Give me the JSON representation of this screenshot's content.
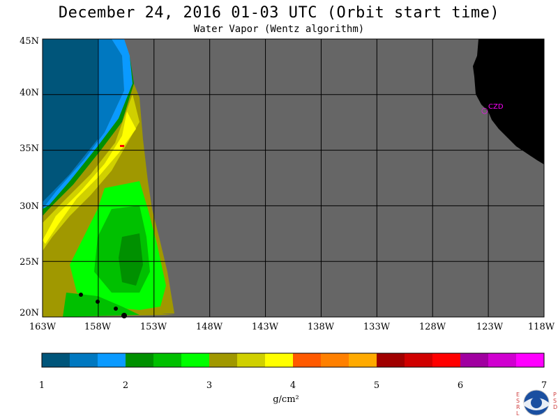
{
  "header": {
    "title": "December 24, 2016  01-03 UTC  (Orbit start time)",
    "subtitle": "Water Vapor (Wentz algorithm)"
  },
  "map": {
    "lat_labels": [
      "45N",
      "40N",
      "35N",
      "30N",
      "25N",
      "20N"
    ],
    "lon_labels": [
      "163W",
      "158W",
      "153W",
      "148W",
      "143W",
      "138W",
      "133W",
      "128W",
      "123W",
      "118W"
    ],
    "station_label": "CZD",
    "lat_range": [
      20,
      45
    ],
    "lon_range": [
      -163,
      -118
    ],
    "colors": {
      "land": "#000000",
      "no_data": "#666666",
      "grid": "#000000",
      "station": "#ff00ff"
    }
  },
  "colorbar": {
    "tick_labels": [
      "1",
      "2",
      "3",
      "4",
      "5",
      "6",
      "7"
    ],
    "unit": "g/cm²",
    "colors": [
      "#00557a",
      "#0078c0",
      "#0a9aff",
      "#009000",
      "#00c000",
      "#00ff00",
      "#a09800",
      "#d0d000",
      "#ffff00",
      "#ff5a00",
      "#ff8000",
      "#ffaa00",
      "#a00000",
      "#d00000",
      "#ff0000",
      "#a000a0",
      "#d000d0",
      "#ff00ff"
    ]
  },
  "logo": {
    "left_text": "E S R L",
    "right_text": "P S D",
    "name": "NOAA"
  }
}
